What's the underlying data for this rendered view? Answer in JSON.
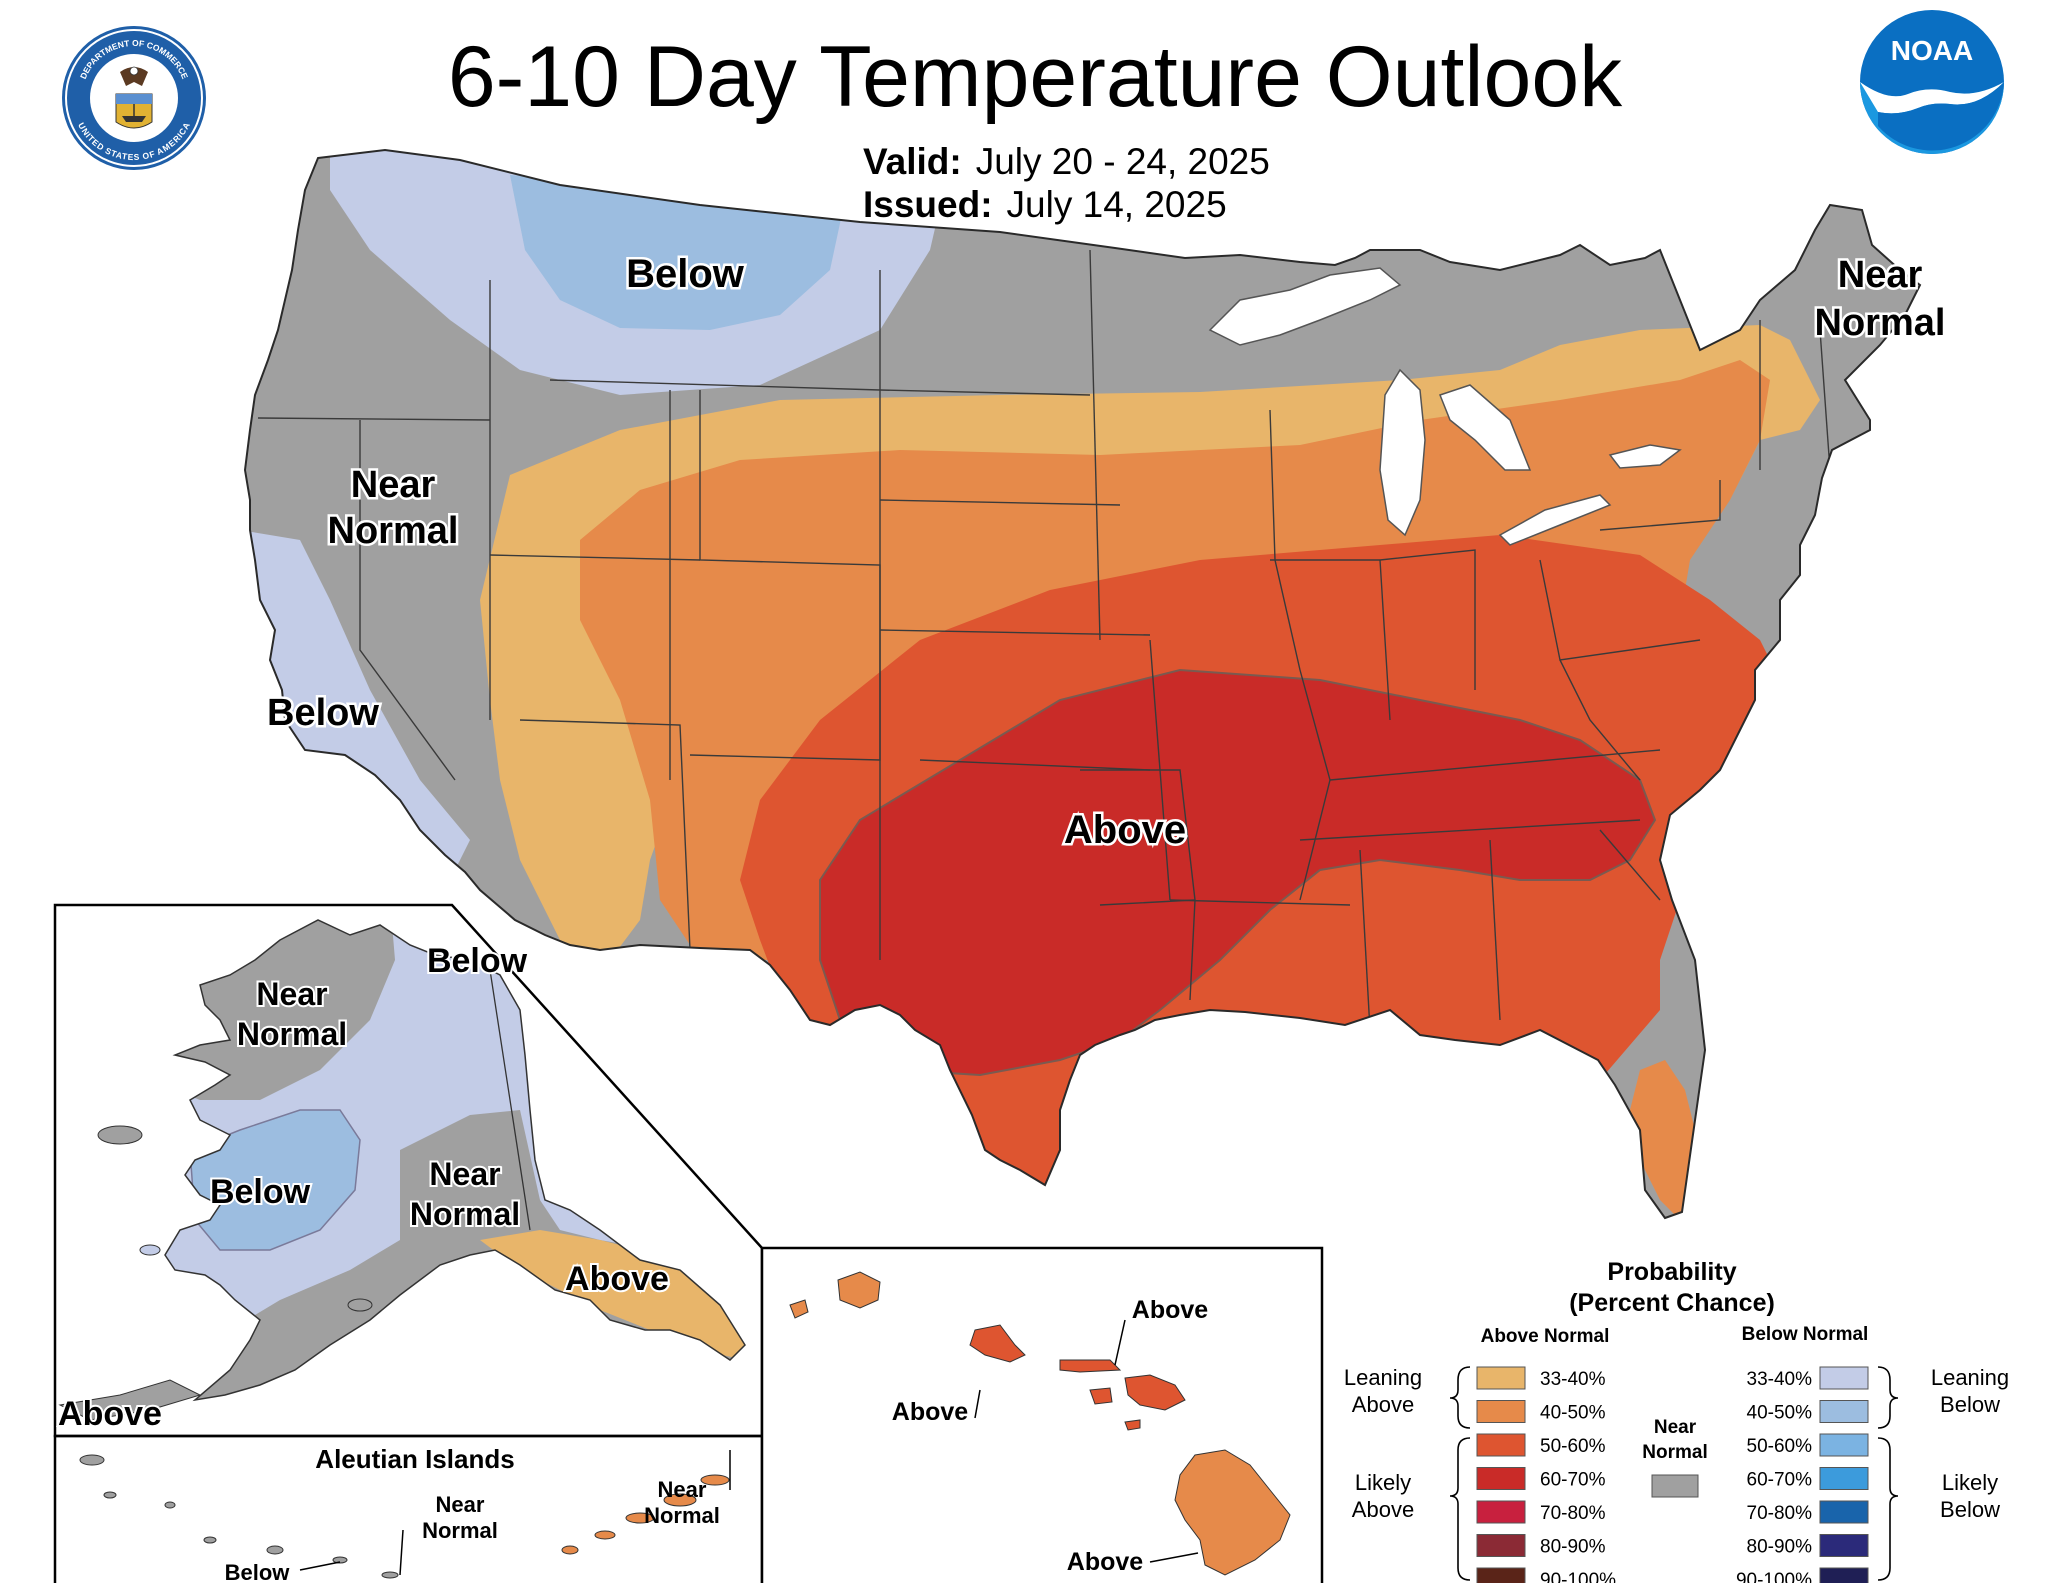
{
  "header": {
    "title": "6-10 Day Temperature Outlook",
    "valid_label": "Valid:",
    "valid_value": "July 20 - 24, 2025",
    "issued_label": "Issued:",
    "issued_value": "July 14, 2025"
  },
  "logos": {
    "doc_seal": {
      "text_top": "DEPARTMENT OF COMMERCE",
      "text_bottom": "UNITED STATES OF AMERICA"
    },
    "noaa": {
      "text": "NOAA"
    }
  },
  "map_labels": {
    "conus_below_north": "Below",
    "conus_near_normal_west_1": "Near",
    "conus_near_normal_west_2": "Normal",
    "conus_below_west": "Below",
    "conus_near_normal_ne_1": "Near",
    "conus_near_normal_ne_2": "Normal",
    "conus_above": "Above",
    "ak_below_north": "Below",
    "ak_near_normal_north_1": "Near",
    "ak_near_normal_north_2": "Normal",
    "ak_below_west": "Below",
    "ak_near_normal_south_1": "Near",
    "ak_near_normal_south_2": "Normal",
    "ak_above_panhandle": "Above",
    "ak_above_southwest": "Above",
    "aleutian_title": "Aleutian Islands",
    "aleutian_near_normal_1": "Near",
    "aleutian_near_normal_2": "Normal",
    "aleutian_near_normal_east_1": "Near",
    "aleutian_near_normal_east_2": "Normal",
    "aleutian_below": "Below",
    "hi_above_1": "Above",
    "hi_above_2": "Above",
    "hi_above_3": "Above"
  },
  "legend": {
    "title_1": "Probability",
    "title_2": "(Percent Chance)",
    "above_header": "Above Normal",
    "below_header": "Below Normal",
    "near_normal_1": "Near",
    "near_normal_2": "Normal",
    "near_normal_color": "#a0a0a0",
    "leaning_above_1": "Leaning",
    "leaning_above_2": "Above",
    "likely_above_1": "Likely",
    "likely_above_2": "Above",
    "leaning_below_1": "Leaning",
    "leaning_below_2": "Below",
    "likely_below_1": "Likely",
    "likely_below_2": "Below",
    "above_items": [
      {
        "label": "33-40%",
        "color": "#e8b56a"
      },
      {
        "label": "40-50%",
        "color": "#e68a4a"
      },
      {
        "label": "50-60%",
        "color": "#de5530"
      },
      {
        "label": "60-70%",
        "color": "#c92b28"
      },
      {
        "label": "70-80%",
        "color": "#c8203e"
      },
      {
        "label": "80-90%",
        "color": "#8b2a35"
      },
      {
        "label": "90-100%",
        "color": "#5a2418"
      }
    ],
    "below_items": [
      {
        "label": "33-40%",
        "color": "#c3cce7"
      },
      {
        "label": "40-50%",
        "color": "#9cbde0"
      },
      {
        "label": "50-60%",
        "color": "#7bb3e2"
      },
      {
        "label": "60-70%",
        "color": "#3c9bdc"
      },
      {
        "label": "70-80%",
        "color": "#1964ab"
      },
      {
        "label": "80-90%",
        "color": "#2b2a7a"
      },
      {
        "label": "90-100%",
        "color": "#1f1f55"
      }
    ]
  },
  "colors": {
    "near_normal": "#a0a0a0",
    "above_33_40": "#e8b56a",
    "above_40_50": "#e68a4a",
    "above_50_60": "#de5530",
    "above_60_70": "#c92b28",
    "below_33_40": "#c3cce7",
    "below_40_50": "#9cbde0",
    "water": "#ffffff",
    "border": "#3a3a3a"
  }
}
